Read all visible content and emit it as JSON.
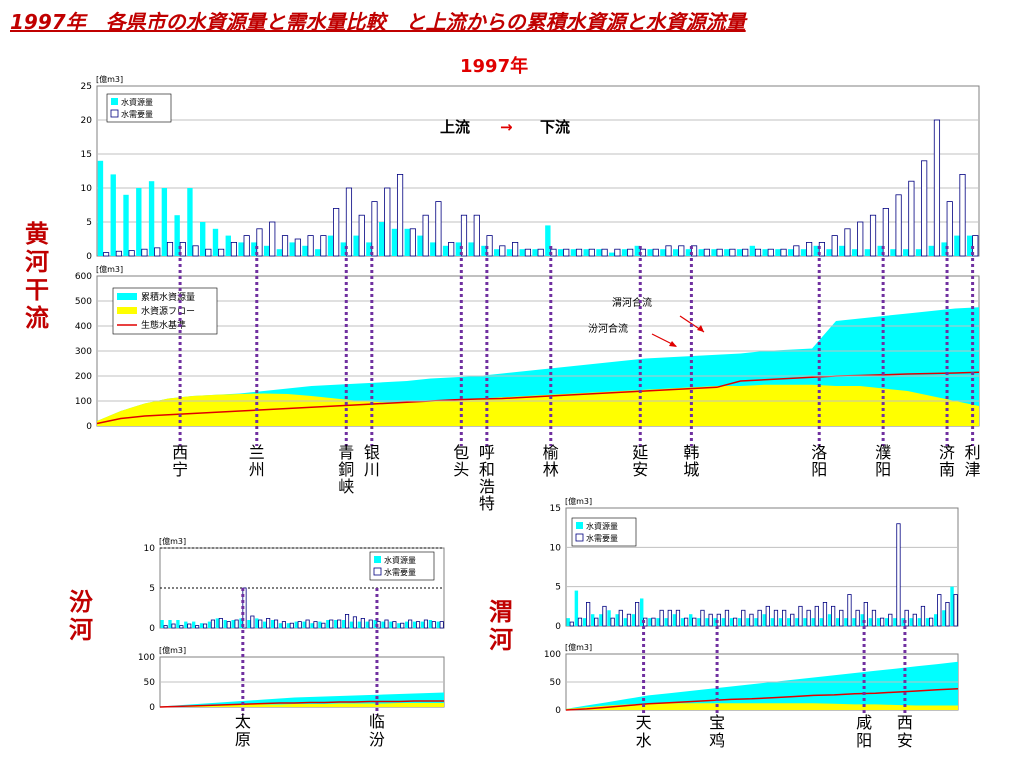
{
  "page": {
    "title": "1997年　各県市の水資源量と需水量比較　と上流からの累積水資源と水資源流量",
    "year": "1997年"
  },
  "colors": {
    "resource": "#00ffff",
    "demand": "#ffffff",
    "demand_edge": "#000080",
    "flow": "#ffff00",
    "eco": "#e00000",
    "marker": "#7030a0",
    "frame": "#808080"
  },
  "rivers": {
    "yellow": "黄河干流",
    "fen": "汾河",
    "wei": "渭河"
  },
  "main": {
    "direction": {
      "up": "上流",
      "arrow": "→",
      "down": "下流"
    },
    "annotations": {
      "wei_join": "渭河合流",
      "fen_join": "汾河合流"
    },
    "cities": [
      {
        "label": "西宁",
        "index": 6
      },
      {
        "label": "兰州",
        "index": 12
      },
      {
        "label": "青銅峡",
        "index": 19
      },
      {
        "label": "银川",
        "index": 21
      },
      {
        "label": "包头",
        "index": 28
      },
      {
        "label": "呼和浩特",
        "index": 30
      },
      {
        "label": "榆林",
        "index": 35
      },
      {
        "label": "延安",
        "index": 42
      },
      {
        "label": "韩城",
        "index": 46
      },
      {
        "label": "洛阳",
        "index": 56
      },
      {
        "label": "濮阳",
        "index": 61
      },
      {
        "label": "济南",
        "index": 66
      },
      {
        "label": "利津",
        "index": 68
      }
    ]
  },
  "chart_data": [
    {
      "id": "yellow-bar",
      "type": "bar",
      "unit": "[億m3]",
      "ylim": [
        0,
        25
      ],
      "yticks": [
        0,
        5,
        10,
        15,
        20,
        25
      ],
      "legend": [
        "水資源量",
        "水需要量"
      ],
      "series": [
        {
          "name": "水資源量",
          "values": [
            14,
            12,
            9,
            10,
            11,
            10,
            6,
            10,
            5,
            4,
            3,
            2,
            2,
            1.5,
            1,
            2,
            1.5,
            1,
            3,
            2,
            3,
            2,
            5,
            4,
            4,
            3,
            2,
            1.5,
            2,
            2,
            1.5,
            1,
            1,
            1,
            1,
            4.5,
            1,
            1,
            1,
            1,
            0.5,
            1,
            1.5,
            1,
            1,
            1,
            1,
            1,
            1,
            1,
            1,
            1.5,
            1,
            1,
            1,
            1,
            1.5,
            1,
            1.5,
            1,
            1,
            1.5,
            1,
            1,
            1,
            1.5,
            2,
            3,
            3
          ]
        },
        {
          "name": "水需要量",
          "values": [
            0.5,
            0.7,
            0.8,
            1,
            1.2,
            2,
            2,
            1.5,
            1,
            1,
            2,
            3,
            4,
            5,
            3,
            2.5,
            3,
            3,
            7,
            10,
            6,
            8,
            10,
            12,
            4,
            6,
            8,
            2,
            6,
            6,
            3,
            1.5,
            2,
            1,
            1,
            1,
            1,
            1,
            1,
            1,
            1,
            1,
            1,
            1,
            1.5,
            1.5,
            1.5,
            1,
            1,
            1,
            1,
            1,
            1,
            1,
            1.5,
            2,
            2,
            3,
            4,
            5,
            6,
            7,
            9,
            11,
            14,
            20,
            8,
            12,
            3
          ]
        }
      ]
    },
    {
      "id": "yellow-cum",
      "type": "area",
      "unit": "[億m3]",
      "ylim": [
        0,
        600
      ],
      "yticks": [
        0,
        100,
        200,
        300,
        400,
        500,
        600
      ],
      "legend": [
        "累積水資源量",
        "水資源フロー",
        "生態水基準"
      ],
      "series": [
        {
          "name": "累積水資源量",
          "values": [
            20,
            60,
            90,
            110,
            120,
            125,
            130,
            140,
            150,
            160,
            165,
            170,
            175,
            180,
            190,
            195,
            200,
            210,
            220,
            230,
            240,
            250,
            260,
            270,
            275,
            280,
            285,
            290,
            300,
            305,
            310,
            420,
            430,
            440,
            450,
            460,
            470,
            475
          ]
        },
        {
          "name": "水資源フロー",
          "values": [
            20,
            60,
            90,
            110,
            120,
            125,
            128,
            130,
            128,
            120,
            110,
            100,
            95,
            95,
            100,
            105,
            110,
            115,
            120,
            125,
            130,
            135,
            140,
            145,
            150,
            155,
            160,
            160,
            165,
            165,
            165,
            160,
            160,
            150,
            140,
            120,
            100,
            80
          ]
        },
        {
          "name": "生態水基準",
          "values": [
            10,
            30,
            40,
            45,
            50,
            55,
            60,
            65,
            70,
            75,
            80,
            85,
            90,
            95,
            100,
            105,
            108,
            110,
            115,
            120,
            125,
            130,
            135,
            140,
            145,
            150,
            155,
            180,
            185,
            190,
            195,
            200,
            202,
            205,
            208,
            210,
            212,
            215
          ]
        }
      ]
    },
    {
      "id": "fen-bar",
      "type": "bar",
      "unit": "[億m3]",
      "ylim": [
        0,
        10
      ],
      "yticks": [
        0,
        5,
        10
      ],
      "legend": [
        "水資源量",
        "水需要量"
      ],
      "series": [
        {
          "name": "水資源量",
          "values": [
            1,
            1,
            1,
            0.8,
            0.8,
            0.6,
            0.8,
            1.2,
            1,
            1,
            1.2,
            1,
            1.2,
            0.8,
            1,
            0.6,
            0.6,
            0.8,
            0.8,
            0.6,
            0.8,
            1,
            1,
            1,
            0.8,
            0.8,
            0.8,
            1,
            0.8,
            0.8,
            0.6,
            0.8,
            0.8,
            0.8,
            1,
            0.8
          ]
        },
        {
          "name": "水需要量",
          "values": [
            0.3,
            0.5,
            0.3,
            0.5,
            0.3,
            0.5,
            1,
            1.2,
            0.8,
            1,
            5,
            1.5,
            1,
            1.2,
            1,
            0.8,
            0.6,
            0.8,
            1,
            0.8,
            0.6,
            1,
            1,
            1.7,
            1.4,
            1.2,
            1,
            0.8,
            1,
            0.8,
            0.6,
            1,
            0.8,
            1,
            0.8,
            0.8
          ]
        }
      ]
    },
    {
      "id": "fen-cum",
      "type": "area",
      "unit": "[億m3]",
      "ylim": [
        0,
        100
      ],
      "yticks": [
        0,
        50,
        100
      ],
      "series": [
        {
          "name": "累積水資源量",
          "values": [
            1,
            3,
            5,
            7,
            9,
            11,
            13,
            15,
            17,
            19,
            20,
            21,
            22,
            23,
            24,
            25,
            26,
            27,
            28,
            29
          ]
        },
        {
          "name": "水資源フロー",
          "values": [
            1,
            2,
            3,
            3,
            4,
            4,
            5,
            5,
            5,
            6,
            6,
            6,
            7,
            7,
            7,
            7,
            8,
            8,
            8,
            8
          ]
        },
        {
          "name": "生態水基準",
          "values": [
            0,
            1,
            2,
            3,
            4,
            5,
            6,
            7,
            8,
            8,
            9,
            9,
            10,
            10,
            11,
            11,
            11,
            12,
            12,
            12
          ]
        }
      ]
    },
    {
      "id": "wei-bar",
      "type": "bar",
      "unit": "[億m3]",
      "ylim": [
        0,
        15
      ],
      "yticks": [
        0,
        5,
        10,
        15
      ],
      "legend": [
        "水資源量",
        "水需要量"
      ],
      "series": [
        {
          "name": "水資源量",
          "values": [
            1,
            4.5,
            1,
            1.5,
            1.5,
            2,
            1.5,
            1,
            1.5,
            3.5,
            1,
            1,
            1,
            1.5,
            1,
            1.5,
            1,
            1,
            1,
            1,
            1,
            1,
            1,
            1,
            1.5,
            1,
            1,
            1,
            1,
            1,
            1,
            1,
            1.5,
            1,
            1,
            1,
            1.5,
            1,
            1,
            1,
            1,
            1,
            1,
            1,
            1,
            1.5,
            2,
            5
          ]
        },
        {
          "name": "水需要量",
          "values": [
            0.5,
            1,
            3,
            1,
            2.5,
            1,
            2,
            1.5,
            3,
            1,
            1,
            2,
            2,
            2,
            1,
            1,
            2,
            1.5,
            1.5,
            2,
            1,
            2,
            1.5,
            2,
            2.5,
            2,
            2,
            1.5,
            2.5,
            2,
            2.5,
            3,
            2.5,
            2,
            4,
            2,
            3,
            2,
            1,
            1.5,
            13,
            2,
            1.5,
            2.5,
            1,
            4,
            3,
            4
          ]
        }
      ]
    },
    {
      "id": "wei-cum",
      "type": "area",
      "unit": "[億m3]",
      "ylim": [
        0,
        100
      ],
      "yticks": [
        0,
        50,
        100
      ],
      "series": [
        {
          "name": "累積水資源量",
          "values": [
            2,
            8,
            14,
            20,
            26,
            30,
            34,
            38,
            42,
            46,
            50,
            54,
            58,
            62,
            66,
            70,
            74,
            78,
            82,
            86
          ]
        },
        {
          "name": "水資源フロー",
          "values": [
            2,
            5,
            8,
            10,
            11,
            12,
            12,
            12,
            12,
            12,
            12,
            12,
            12,
            11,
            10,
            10,
            9,
            8,
            8,
            8
          ]
        },
        {
          "name": "生態水基準",
          "values": [
            0,
            2,
            5,
            8,
            11,
            13,
            15,
            17,
            19,
            20,
            22,
            24,
            26,
            27,
            29,
            30,
            32,
            34,
            36,
            38
          ]
        }
      ]
    }
  ],
  "sub": {
    "fen_cities": [
      {
        "label": "太原",
        "index": 10
      },
      {
        "label": "临汾",
        "index": 27
      }
    ],
    "wei_cities": [
      {
        "label": "天水",
        "index": 9
      },
      {
        "label": "宝鸡",
        "index": 18
      },
      {
        "label": "咸阳",
        "index": 36
      },
      {
        "label": "西安",
        "index": 41
      }
    ]
  }
}
